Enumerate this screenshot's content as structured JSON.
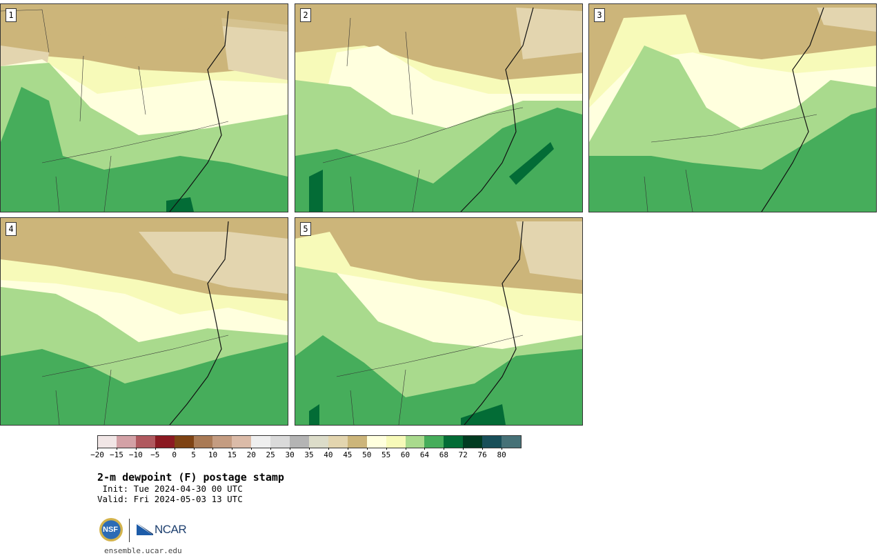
{
  "panels": [
    {
      "label": "1"
    },
    {
      "label": "2"
    },
    {
      "label": "3"
    },
    {
      "label": "4"
    },
    {
      "label": "5"
    }
  ],
  "colorbar": {
    "colors": [
      "#f1e6e6",
      "#d3a1a6",
      "#b0595f",
      "#8b1a22",
      "#7e4314",
      "#a97a55",
      "#c49c81",
      "#dbbba8",
      "#efefef",
      "#dadada",
      "#b4b4b4",
      "#dcdcc9",
      "#e3d5af",
      "#ccb57a",
      "#ffffde",
      "#f7fab9",
      "#a9da8d",
      "#46ad5b",
      "#036c36",
      "#013b21",
      "#184f59",
      "#467177"
    ],
    "ticks": [
      "-20",
      "-15",
      "-10",
      "-5",
      "0",
      "5",
      "10",
      "15",
      "20",
      "25",
      "30",
      "35",
      "40",
      "45",
      "50",
      "55",
      "60",
      "64",
      "68",
      "72",
      "76",
      "80"
    ]
  },
  "title": "2-m dewpoint (F) postage stamp",
  "init": " Init: Tue 2024-04-30 00 UTC",
  "valid": "Valid: Fri 2024-05-03 13 UTC",
  "logos": {
    "nsf": "NSF",
    "ncar": "NCAR"
  },
  "site": "ensemble.ucar.edu"
}
